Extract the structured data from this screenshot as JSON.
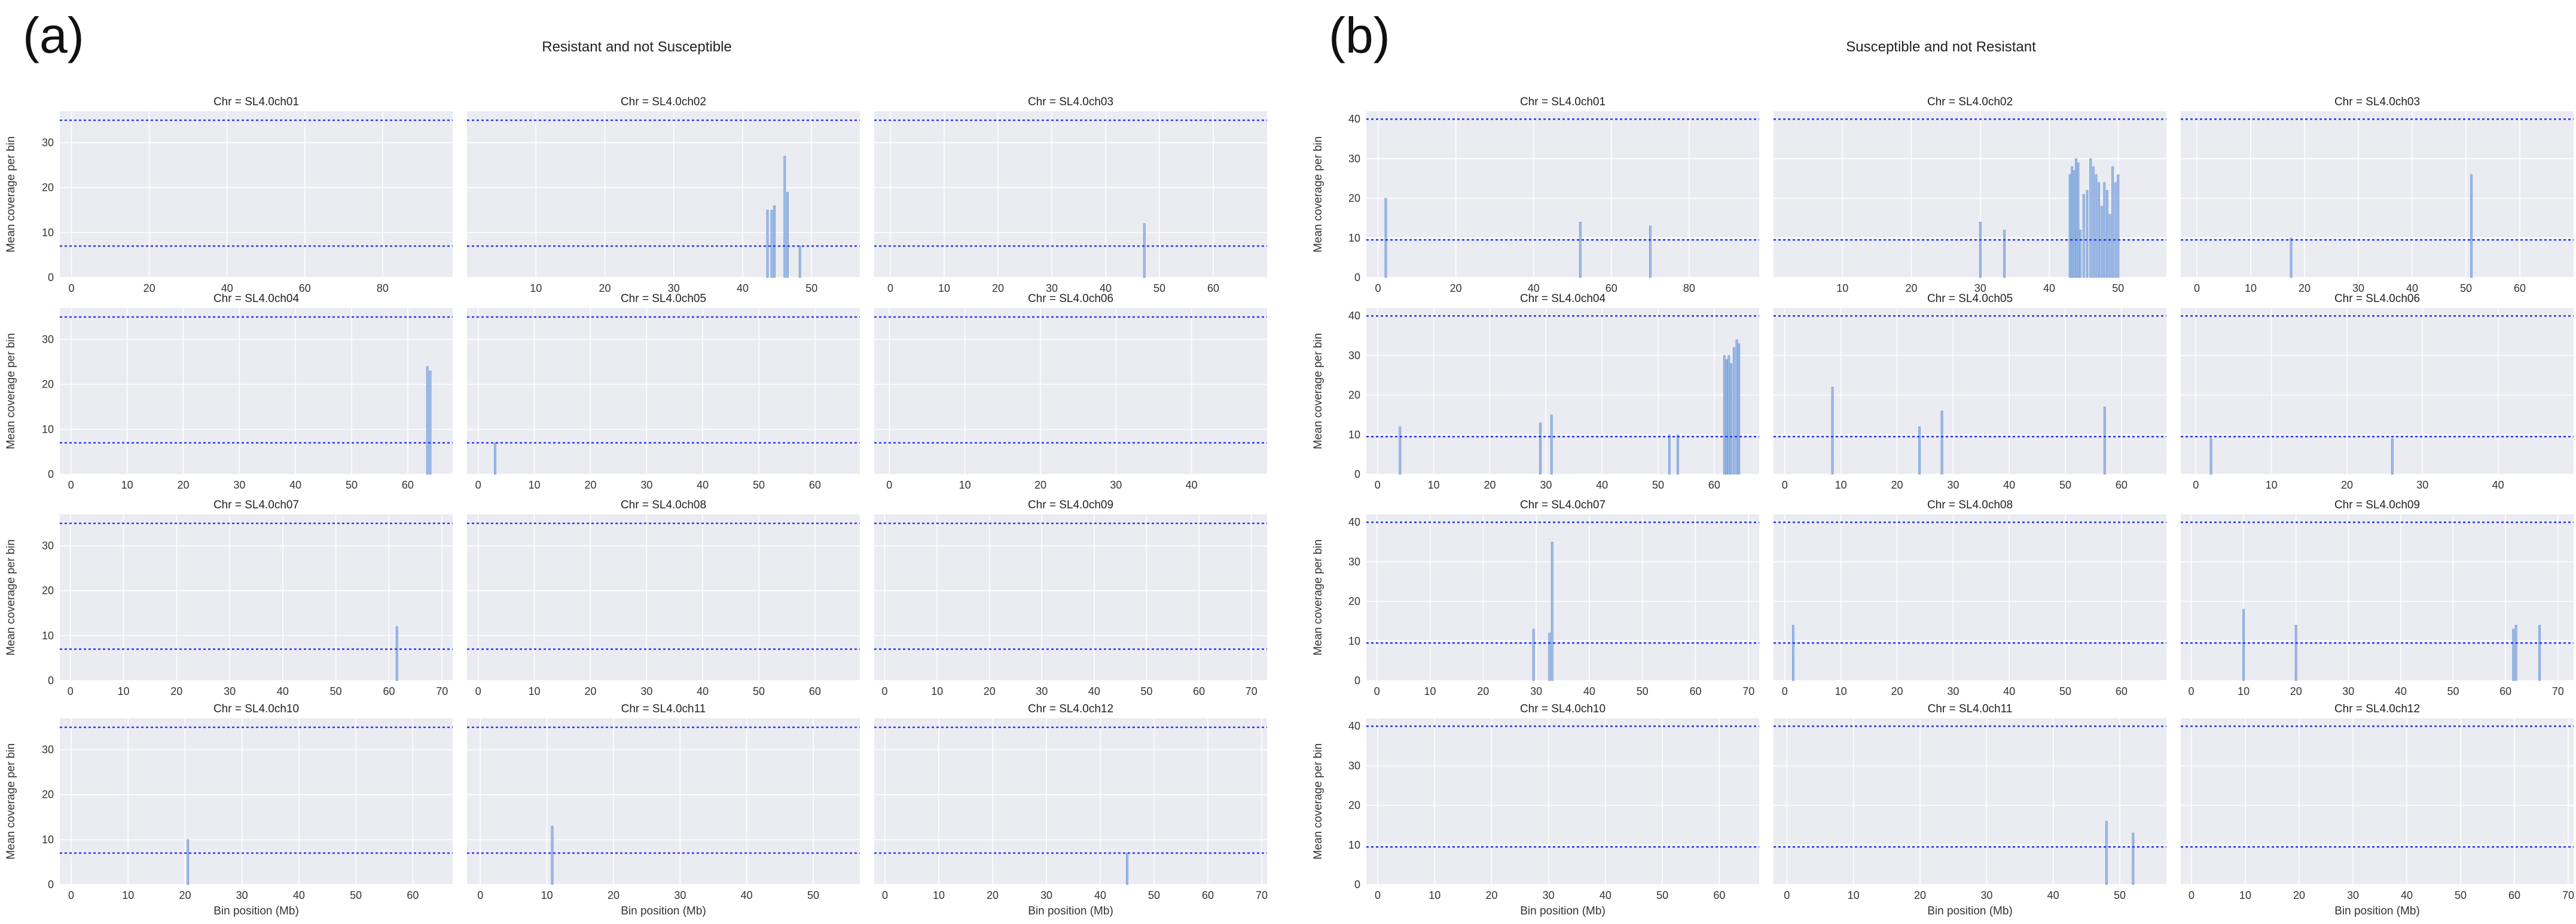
{
  "colors": {
    "plot_background": "#ebebf2",
    "grid": "#ffffff",
    "threshold_line": "#2233ee",
    "bar_fill": "#9dbbe6",
    "bar_stroke": "#5e8cd0"
  },
  "chart_data": [
    {
      "type": "bar",
      "panel_label": "(a)",
      "title": "Resistant and not Susceptible",
      "xlabel": "Bin position (Mb)",
      "ylabel": "Mean coverage per bin",
      "ylim": [
        0,
        37
      ],
      "yticks": [
        0,
        10,
        20,
        30
      ],
      "thresholds": [
        35,
        7
      ],
      "grid": true,
      "facets": [
        {
          "title": "Chr = SL4.0ch01",
          "xlim": [
            -3,
            98
          ],
          "xticks": [
            0,
            20,
            40,
            60,
            80
          ],
          "bins": []
        },
        {
          "title": "Chr = SL4.0ch02",
          "xlim": [
            0,
            57
          ],
          "xticks": [
            10,
            20,
            30,
            40,
            50
          ],
          "bins": [
            {
              "x": 43.6,
              "y": 15
            },
            {
              "x": 44.2,
              "y": 15
            },
            {
              "x": 44.6,
              "y": 16
            },
            {
              "x": 46.1,
              "y": 27
            },
            {
              "x": 46.5,
              "y": 19
            },
            {
              "x": 48.3,
              "y": 7
            }
          ]
        },
        {
          "title": "Chr = SL4.0ch03",
          "xlim": [
            -3,
            70
          ],
          "xticks": [
            0,
            10,
            20,
            30,
            40,
            50,
            60
          ],
          "bins": [
            {
              "x": 47.2,
              "y": 12
            }
          ]
        },
        {
          "title": "Chr = SL4.0ch04",
          "xlim": [
            -2,
            68
          ],
          "xticks": [
            0,
            10,
            20,
            30,
            40,
            50,
            60
          ],
          "bins": [
            {
              "x": 63.5,
              "y": 24
            },
            {
              "x": 64.0,
              "y": 23
            }
          ]
        },
        {
          "title": "Chr = SL4.0ch05",
          "xlim": [
            -2,
            68
          ],
          "xticks": [
            0,
            10,
            20,
            30,
            40,
            50,
            60
          ],
          "bins": [
            {
              "x": 3.0,
              "y": 7
            }
          ]
        },
        {
          "title": "Chr = SL4.0ch06",
          "xlim": [
            -2,
            50
          ],
          "xticks": [
            0,
            10,
            20,
            30,
            40
          ],
          "bins": []
        },
        {
          "title": "Chr = SL4.0ch07",
          "xlim": [
            -2,
            72
          ],
          "xticks": [
            0,
            10,
            20,
            30,
            40,
            50,
            60,
            70
          ],
          "bins": [
            {
              "x": 61.5,
              "y": 12
            }
          ]
        },
        {
          "title": "Chr = SL4.0ch08",
          "xlim": [
            -2,
            68
          ],
          "xticks": [
            0,
            10,
            20,
            30,
            40,
            50,
            60
          ],
          "bins": []
        },
        {
          "title": "Chr = SL4.0ch09",
          "xlim": [
            -2,
            73
          ],
          "xticks": [
            0,
            10,
            20,
            30,
            40,
            50,
            60,
            70
          ],
          "bins": []
        },
        {
          "title": "Chr = SL4.0ch10",
          "xlim": [
            -2,
            67
          ],
          "xticks": [
            0,
            10,
            20,
            30,
            40,
            50,
            60
          ],
          "bins": [
            {
              "x": 20.5,
              "y": 10
            }
          ]
        },
        {
          "title": "Chr = SL4.0ch11",
          "xlim": [
            -2,
            57
          ],
          "xticks": [
            0,
            10,
            20,
            30,
            40,
            50
          ],
          "bins": [
            {
              "x": 10.8,
              "y": 13
            }
          ]
        },
        {
          "title": "Chr = SL4.0ch12",
          "xlim": [
            -2,
            71
          ],
          "xticks": [
            0,
            10,
            20,
            30,
            40,
            50,
            60,
            70
          ],
          "bins": [
            {
              "x": 45.0,
              "y": 7
            }
          ]
        }
      ]
    },
    {
      "type": "bar",
      "panel_label": "(b)",
      "title": "Susceptible and not Resistant",
      "xlabel": "Bin position (Mb)",
      "ylabel": "Mean coverage per bin",
      "ylim": [
        0,
        42
      ],
      "yticks": [
        0,
        10,
        20,
        30,
        40
      ],
      "thresholds": [
        40,
        9.5
      ],
      "grid": true,
      "facets": [
        {
          "title": "Chr = SL4.0ch01",
          "xlim": [
            -3,
            98
          ],
          "xticks": [
            0,
            20,
            40,
            60,
            80
          ],
          "bins": [
            {
              "x": 2.0,
              "y": 20
            },
            {
              "x": 52.0,
              "y": 14
            },
            {
              "x": 70.0,
              "y": 13
            }
          ]
        },
        {
          "title": "Chr = SL4.0ch02",
          "xlim": [
            0,
            57
          ],
          "xticks": [
            10,
            20,
            30,
            40,
            50
          ],
          "bins": [
            {
              "x": 30.0,
              "y": 14
            },
            {
              "x": 33.5,
              "y": 12
            },
            {
              "x": 43.0,
              "y": 26
            },
            {
              "x": 43.3,
              "y": 28
            },
            {
              "x": 43.6,
              "y": 27
            },
            {
              "x": 43.9,
              "y": 30
            },
            {
              "x": 44.2,
              "y": 29
            },
            {
              "x": 44.5,
              "y": 12
            },
            {
              "x": 45.0,
              "y": 21
            },
            {
              "x": 45.5,
              "y": 22
            },
            {
              "x": 46.0,
              "y": 30
            },
            {
              "x": 46.4,
              "y": 28
            },
            {
              "x": 46.8,
              "y": 26
            },
            {
              "x": 47.2,
              "y": 24
            },
            {
              "x": 47.6,
              "y": 18
            },
            {
              "x": 48.0,
              "y": 24
            },
            {
              "x": 48.4,
              "y": 22
            },
            {
              "x": 48.8,
              "y": 16
            },
            {
              "x": 49.2,
              "y": 28
            },
            {
              "x": 49.6,
              "y": 24
            },
            {
              "x": 50.0,
              "y": 26
            }
          ]
        },
        {
          "title": "Chr = SL4.0ch03",
          "xlim": [
            -3,
            70
          ],
          "xticks": [
            0,
            10,
            20,
            30,
            40,
            50,
            60
          ],
          "bins": [
            {
              "x": 17.5,
              "y": 10
            },
            {
              "x": 51.0,
              "y": 26
            }
          ]
        },
        {
          "title": "Chr = SL4.0ch04",
          "xlim": [
            -2,
            68
          ],
          "xticks": [
            0,
            10,
            20,
            30,
            40,
            50,
            60
          ],
          "bins": [
            {
              "x": 4.0,
              "y": 12
            },
            {
              "x": 29.0,
              "y": 13
            },
            {
              "x": 31.0,
              "y": 15
            },
            {
              "x": 52.0,
              "y": 10
            },
            {
              "x": 53.5,
              "y": 10
            },
            {
              "x": 61.8,
              "y": 30
            },
            {
              "x": 62.2,
              "y": 29
            },
            {
              "x": 62.6,
              "y": 30
            },
            {
              "x": 63.0,
              "y": 28
            },
            {
              "x": 63.5,
              "y": 32
            },
            {
              "x": 64.0,
              "y": 34
            },
            {
              "x": 64.4,
              "y": 33
            }
          ]
        },
        {
          "title": "Chr = SL4.0ch05",
          "xlim": [
            -2,
            68
          ],
          "xticks": [
            0,
            10,
            20,
            30,
            40,
            50,
            60
          ],
          "bins": [
            {
              "x": 8.5,
              "y": 22
            },
            {
              "x": 24.0,
              "y": 12
            },
            {
              "x": 28.0,
              "y": 16
            },
            {
              "x": 57.0,
              "y": 17
            }
          ]
        },
        {
          "title": "Chr = SL4.0ch06",
          "xlim": [
            -2,
            50
          ],
          "xticks": [
            0,
            10,
            20,
            30,
            40
          ],
          "bins": [
            {
              "x": 2.0,
              "y": 9
            },
            {
              "x": 26.0,
              "y": 9
            }
          ]
        },
        {
          "title": "Chr = SL4.0ch07",
          "xlim": [
            -2,
            72
          ],
          "xticks": [
            0,
            10,
            20,
            30,
            40,
            50,
            60,
            70
          ],
          "bins": [
            {
              "x": 29.5,
              "y": 13
            },
            {
              "x": 32.5,
              "y": 12
            },
            {
              "x": 33.0,
              "y": 35
            }
          ]
        },
        {
          "title": "Chr = SL4.0ch08",
          "xlim": [
            -2,
            68
          ],
          "xticks": [
            0,
            10,
            20,
            30,
            40,
            50,
            60
          ],
          "bins": [
            {
              "x": 1.5,
              "y": 14
            }
          ]
        },
        {
          "title": "Chr = SL4.0ch09",
          "xlim": [
            -2,
            73
          ],
          "xticks": [
            0,
            10,
            20,
            30,
            40,
            50,
            60,
            70
          ],
          "bins": [
            {
              "x": 10.0,
              "y": 18
            },
            {
              "x": 20.0,
              "y": 14
            },
            {
              "x": 61.5,
              "y": 13
            },
            {
              "x": 62.0,
              "y": 14
            },
            {
              "x": 66.5,
              "y": 14
            }
          ]
        },
        {
          "title": "Chr = SL4.0ch10",
          "xlim": [
            -2,
            67
          ],
          "xticks": [
            0,
            10,
            20,
            30,
            40,
            50,
            60
          ],
          "bins": []
        },
        {
          "title": "Chr = SL4.0ch11",
          "xlim": [
            -2,
            57
          ],
          "xticks": [
            0,
            10,
            20,
            30,
            40,
            50
          ],
          "bins": [
            {
              "x": 48.0,
              "y": 16
            },
            {
              "x": 52.0,
              "y": 13
            }
          ]
        },
        {
          "title": "Chr = SL4.0ch12",
          "xlim": [
            -2,
            71
          ],
          "xticks": [
            0,
            10,
            20,
            30,
            40,
            50,
            60,
            70
          ],
          "bins": []
        }
      ]
    }
  ]
}
